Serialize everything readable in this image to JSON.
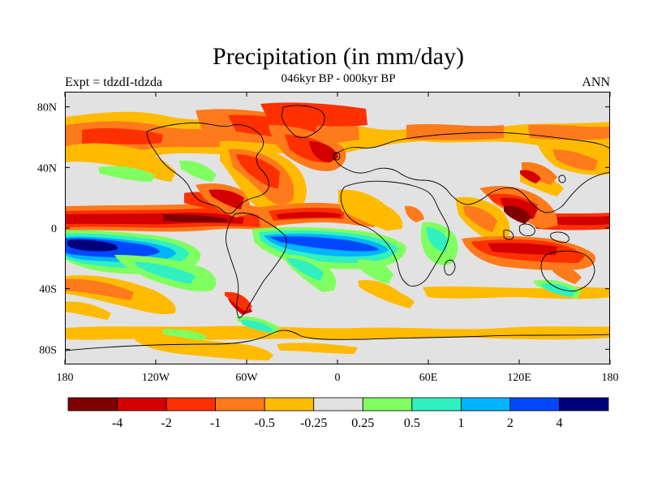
{
  "title": "Precipitation (in mm/day)",
  "subtitle": "046kyr BP - 000kyr BP",
  "experiment_label": "Expt = tdzdI-tdzda",
  "season_label": "ANN",
  "chart_data": {
    "type": "heatmap",
    "projection": "cylindrical-equidistant",
    "variable": "precipitation difference",
    "units": "mm/day",
    "x_range": [
      -180,
      180
    ],
    "y_range": [
      -90,
      90
    ],
    "x_ticks": [
      "180",
      "120W",
      "60W",
      "0",
      "60E",
      "120E",
      "180"
    ],
    "y_ticks": [
      "80N",
      "40N",
      "0",
      "40S",
      "80S"
    ],
    "colorbar": {
      "levels": [
        "-4",
        "-2",
        "-1",
        "-0.5",
        "-0.25",
        "0.25",
        "0.5",
        "1",
        "2",
        "4"
      ],
      "colors": [
        "#800000",
        "#d40000",
        "#ff3000",
        "#ff7a1a",
        "#ffbb00",
        "#e2e2e2",
        "#80ff60",
        "#30f0c0",
        "#00b4ff",
        "#0048ff",
        "#00007a"
      ]
    }
  }
}
